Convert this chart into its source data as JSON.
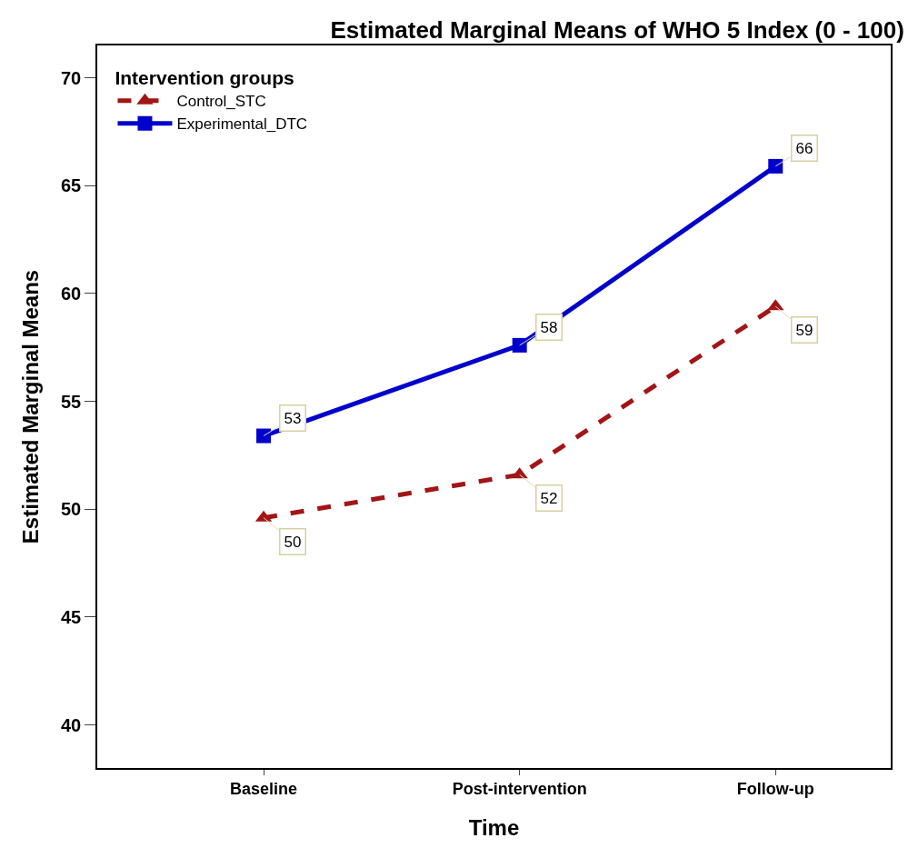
{
  "chart_data": {
    "type": "line",
    "title": "Estimated Marginal Means of WHO 5 Index (0 - 100)",
    "xlabel": "Time",
    "ylabel": "Estimated Marginal Means",
    "legend_title": "Intervention groups",
    "categories": [
      "Baseline",
      "Post-intervention",
      "Follow-up"
    ],
    "series": [
      {
        "name": "Control_STC",
        "color": "#a31515",
        "values": [
          49.6,
          51.6,
          59.4
        ],
        "value_labels": [
          "50",
          "52",
          "59"
        ],
        "marker": "triangle",
        "line_style": "dashed"
      },
      {
        "name": "Experimental_DTC",
        "color": "#0000cc",
        "values": [
          53.4,
          57.6,
          65.9
        ],
        "value_labels": [
          "53",
          "58",
          "66"
        ],
        "marker": "square",
        "line_style": "solid"
      }
    ],
    "ylim": [
      38,
      71.5
    ],
    "yticks": [
      40,
      45,
      50,
      55,
      60,
      65,
      70
    ],
    "grid": false,
    "legend": "top left"
  }
}
